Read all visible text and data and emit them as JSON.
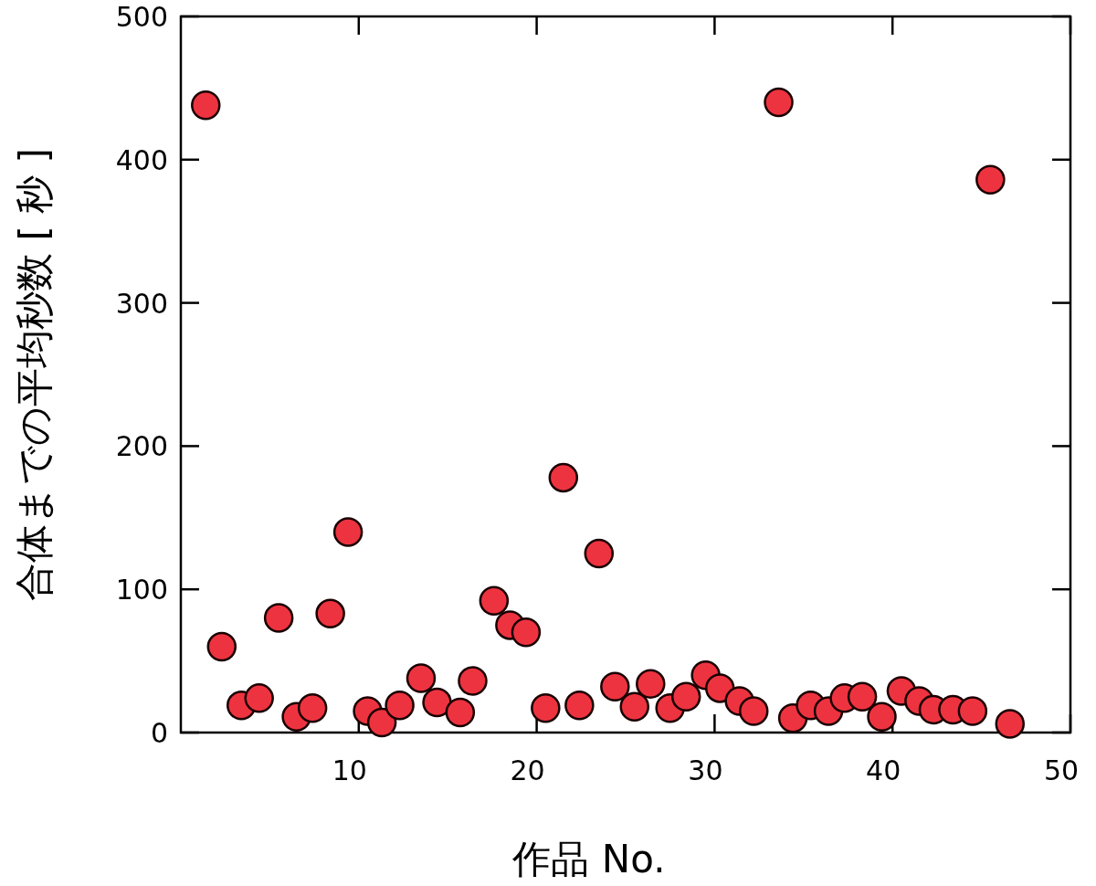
{
  "chart_data": {
    "type": "scatter",
    "xlabel": "作品 No.",
    "ylabel": "合体までの平均秒数 [ 秒 ]",
    "marker": "circle",
    "color": "#ee3340",
    "x": [
      1.4,
      2.3,
      3.4,
      4.4,
      5.5,
      6.5,
      7.4,
      8.4,
      9.4,
      10.5,
      11.3,
      12.3,
      13.5,
      14.4,
      15.7,
      16.4,
      17.6,
      18.5,
      19.4,
      20.5,
      21.5,
      22.4,
      23.5,
      24.4,
      25.5,
      26.4,
      27.5,
      28.4,
      29.5,
      30.3,
      31.4,
      32.2,
      33.6,
      34.4,
      35.4,
      36.4,
      37.3,
      38.3,
      39.4,
      40.5,
      41.5,
      42.3,
      43.4,
      44.5,
      45.5,
      46.6
    ],
    "values": [
      438,
      60,
      19,
      24,
      80,
      11,
      17,
      83,
      140,
      15,
      7,
      19,
      38,
      21,
      14,
      36,
      92,
      75,
      70,
      17,
      178,
      19,
      125,
      32,
      18,
      34,
      17,
      25,
      40,
      31,
      22,
      15,
      440,
      10,
      19,
      15,
      24,
      25,
      11,
      29,
      22,
      16,
      16,
      15,
      386,
      6
    ],
    "xlim": [
      0,
      50
    ],
    "ylim": [
      0,
      500
    ],
    "xticks": [
      10,
      20,
      30,
      40,
      50
    ],
    "yticks": [
      0,
      100,
      200,
      300,
      400,
      500
    ]
  }
}
